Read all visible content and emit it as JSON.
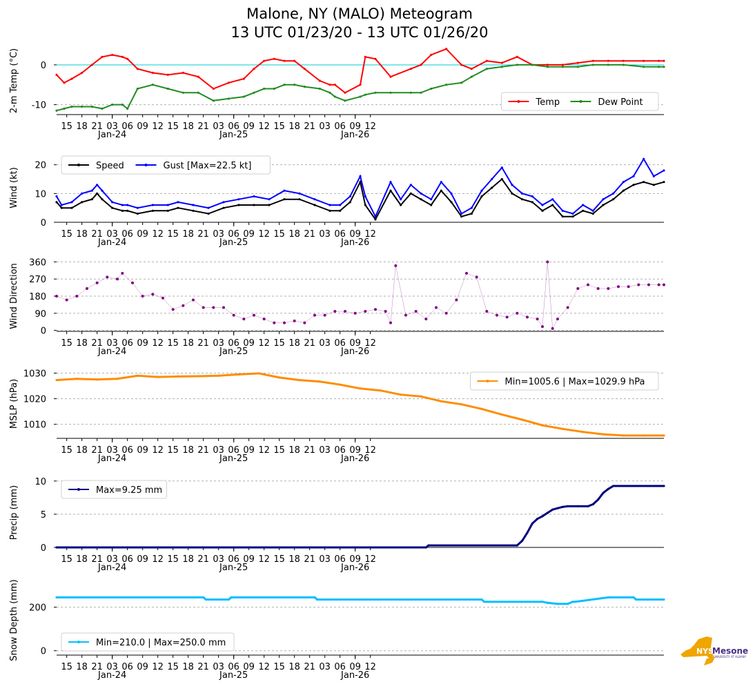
{
  "title_line1": "Malone, NY (MALO) Meteogram",
  "title_line2": "13 UTC 01/23/20 - 13 UTC 01/26/20",
  "x_axis": {
    "hours": [
      "15",
      "18",
      "21",
      "03",
      "06",
      "09",
      "12",
      "15",
      "18",
      "21",
      "03",
      "06",
      "09",
      "12",
      "15",
      "18",
      "21",
      "03",
      "06",
      "09",
      "12"
    ],
    "dates": [
      "Jan-24",
      "Jan-25",
      "Jan-26"
    ]
  },
  "logo": {
    "brand": "NYS Mesonet",
    "nys": "NYS",
    "mesonet": "Mesonet",
    "sub": "UNIVERSITY AT ALBANY"
  },
  "chart_data": [
    {
      "type": "line",
      "ylabel": "2-m Temp ($^\\circ$C)",
      "ylabel_display": "2-m Temp (°C)",
      "ylim": [
        -12.5,
        4.5
      ],
      "yticks": [
        0,
        -10
      ],
      "reference_line": 0,
      "legend": [
        "Temp",
        "Dew Point"
      ],
      "legend_position": "lower-right",
      "x_hours": [
        0,
        1.5,
        3,
        5,
        7,
        9,
        11,
        13,
        14,
        16,
        19,
        22,
        25,
        28,
        31,
        34,
        37,
        39,
        41,
        43,
        45,
        47,
        49,
        52,
        54,
        55,
        57,
        60,
        61,
        63,
        66,
        70,
        72,
        74,
        77,
        80,
        82,
        85,
        88,
        91,
        94,
        97,
        100,
        103,
        106,
        109,
        112,
        116,
        119,
        120
      ],
      "series": [
        {
          "name": "Temp",
          "color": "#ff0000",
          "values": [
            -2.5,
            -4.5,
            -3.5,
            -2,
            0,
            2,
            2.5,
            2,
            1.5,
            -1,
            -2,
            -2.5,
            -2,
            -3,
            -6,
            -4.5,
            -3.5,
            -1,
            1,
            1.5,
            1,
            1,
            -1,
            -4,
            -5,
            -5,
            -7,
            -5,
            2,
            1.5,
            -3,
            -1,
            0,
            2.5,
            4,
            0,
            -1,
            1,
            0.5,
            2,
            0,
            0,
            0,
            0.5,
            1,
            1,
            1,
            1,
            1,
            1
          ]
        },
        {
          "name": "Dew Point",
          "color": "#228b22",
          "values": [
            -11.5,
            -11,
            -10.5,
            -10.5,
            -10.5,
            -11,
            -10,
            -10,
            -11,
            -6,
            -5,
            -6,
            -7,
            -7,
            -9,
            -8.5,
            -8,
            -7,
            -6,
            -6,
            -5,
            -5,
            -5.5,
            -6,
            -7,
            -8,
            -9,
            -8,
            -7.5,
            -7,
            -7,
            -7,
            -7,
            -6,
            -5,
            -4.5,
            -3,
            -1,
            -0.5,
            0,
            0,
            -0.5,
            -0.5,
            -0.5,
            0,
            0,
            0,
            -0.5,
            -0.5,
            -0.5
          ]
        }
      ]
    },
    {
      "type": "line",
      "ylabel": "Wind (kt)",
      "ylim": [
        0,
        24
      ],
      "yticks": [
        0,
        10,
        20
      ],
      "legend": [
        "Speed",
        "Gust [Max=22.5 kt]"
      ],
      "legend_position": "upper-left",
      "x_hours": [
        0,
        1,
        3,
        5,
        7,
        8,
        9,
        11,
        13,
        14,
        16,
        19,
        22,
        24,
        27,
        30,
        33,
        36,
        39,
        42,
        45,
        48,
        51,
        54,
        56,
        58,
        60,
        61,
        63,
        66,
        68,
        70,
        72,
        74,
        76,
        78,
        80,
        82,
        84,
        86,
        88,
        90,
        92,
        94,
        96,
        98,
        100,
        102,
        104,
        106,
        108,
        110,
        112,
        114,
        116,
        118,
        120
      ],
      "series": [
        {
          "name": "Gust [Max=22.5 kt]",
          "color": "#0000ff",
          "values": [
            9,
            6,
            7,
            10,
            11,
            13,
            11,
            7,
            6,
            6,
            5,
            6,
            6,
            7,
            6,
            5,
            7,
            8,
            9,
            8,
            11,
            10,
            8,
            6,
            6,
            9,
            16,
            9,
            2,
            14,
            8,
            13,
            10,
            8,
            14,
            10,
            3,
            5,
            11,
            15,
            19,
            13,
            10,
            9,
            6,
            8,
            4,
            3,
            6,
            4,
            8,
            10,
            14,
            16,
            22,
            16,
            18
          ]
        },
        {
          "name": "Speed",
          "color": "#000000",
          "values": [
            7,
            5,
            5,
            7,
            8,
            10,
            8,
            5,
            4,
            4,
            3,
            4,
            4,
            5,
            4,
            3,
            5,
            6,
            6,
            6,
            8,
            8,
            6,
            4,
            4,
            7,
            14,
            6,
            1,
            11,
            6,
            10,
            8,
            6,
            11,
            7,
            2,
            3,
            9,
            12,
            15,
            10,
            8,
            7,
            4,
            6,
            2,
            2,
            4,
            3,
            6,
            8,
            11,
            13,
            14,
            13,
            14
          ]
        }
      ]
    },
    {
      "type": "scatter",
      "ylabel": "Wind Direction",
      "ylim": [
        -5,
        365
      ],
      "yticks": [
        0,
        90,
        180,
        270,
        360
      ],
      "color": "#800080",
      "x_hours": [
        0,
        2,
        4,
        6,
        8,
        10,
        12,
        13,
        15,
        17,
        19,
        21,
        23,
        25,
        27,
        29,
        31,
        33,
        35,
        37,
        39,
        41,
        43,
        45,
        47,
        49,
        51,
        53,
        55,
        57,
        59,
        61,
        63,
        65,
        66,
        67,
        69,
        71,
        73,
        75,
        77,
        79,
        81,
        83,
        85,
        87,
        89,
        91,
        93,
        95,
        96,
        97,
        98,
        99,
        101,
        103,
        105,
        107,
        109,
        111,
        113,
        115,
        117,
        119,
        120
      ],
      "values": [
        180,
        160,
        180,
        220,
        250,
        280,
        270,
        300,
        250,
        180,
        190,
        170,
        110,
        130,
        160,
        120,
        120,
        120,
        80,
        60,
        80,
        60,
        40,
        40,
        50,
        40,
        80,
        80,
        100,
        100,
        90,
        100,
        110,
        100,
        40,
        340,
        80,
        100,
        60,
        120,
        90,
        160,
        300,
        280,
        100,
        80,
        70,
        90,
        70,
        60,
        20,
        360,
        10,
        60,
        120,
        220,
        240,
        220,
        220,
        230,
        230,
        240,
        240,
        240,
        240
      ]
    },
    {
      "type": "line",
      "ylabel": "MSLP (hPa)",
      "ylim": [
        1004.5,
        1031.5
      ],
      "yticks": [
        1010,
        1020,
        1030
      ],
      "color": "#ff8c00",
      "legend": [
        "Min=1005.6 | Max=1029.9 hPa"
      ],
      "legend_position": "upper-right",
      "x_hours": [
        0,
        4,
        8,
        12,
        16,
        20,
        24,
        28,
        32,
        36,
        40,
        44,
        48,
        52,
        56,
        60,
        64,
        68,
        72,
        76,
        80,
        84,
        88,
        92,
        96,
        100,
        104,
        108,
        112,
        116,
        120
      ],
      "values": [
        1027.3,
        1027.8,
        1027.5,
        1027.8,
        1029,
        1028.5,
        1028.7,
        1028.8,
        1029,
        1029.5,
        1029.9,
        1028.3,
        1027.3,
        1026.7,
        1025.5,
        1024,
        1023.2,
        1021.6,
        1020.9,
        1019,
        1017.8,
        1016,
        1013.8,
        1011.8,
        1009.6,
        1008.2,
        1007,
        1006.1,
        1005.6,
        1005.6,
        1005.6
      ]
    },
    {
      "type": "line",
      "ylabel": "Precip (mm)",
      "ylim": [
        0,
        10.5
      ],
      "yticks": [
        0,
        5,
        10
      ],
      "color": "#000080",
      "legend": [
        "Max=9.25 mm"
      ],
      "legend_position": "upper-left",
      "x_hours": [
        0,
        73,
        73.5,
        91,
        92,
        93,
        94,
        95,
        96,
        97,
        98,
        99,
        100,
        101,
        103,
        105,
        106,
        107,
        108,
        109,
        110,
        120
      ],
      "values": [
        0,
        0,
        0.3,
        0.3,
        1,
        2.2,
        3.6,
        4.3,
        4.7,
        5.2,
        5.7,
        5.9,
        6.1,
        6.2,
        6.2,
        6.2,
        6.5,
        7.2,
        8.2,
        8.8,
        9.25,
        9.25
      ]
    },
    {
      "type": "line",
      "ylabel": "Snow Depth (mm)",
      "ylim": [
        -20,
        300
      ],
      "yticks": [
        0,
        200
      ],
      "color": "#00bfff",
      "legend": [
        "Min=210.0 | Max=250.0 mm"
      ],
      "legend_position": "lower-left",
      "x_hours": [
        0,
        29,
        29.5,
        34,
        34.5,
        51,
        51.5,
        60,
        60.5,
        84,
        84.5,
        96,
        97,
        99,
        101,
        102,
        102.5,
        109,
        109.5,
        114,
        114.5,
        120
      ],
      "values": [
        245,
        245,
        235,
        235,
        245,
        245,
        235,
        235,
        235,
        235,
        225,
        225,
        220,
        215,
        215,
        225,
        225,
        245,
        245,
        245,
        235,
        235
      ]
    }
  ]
}
